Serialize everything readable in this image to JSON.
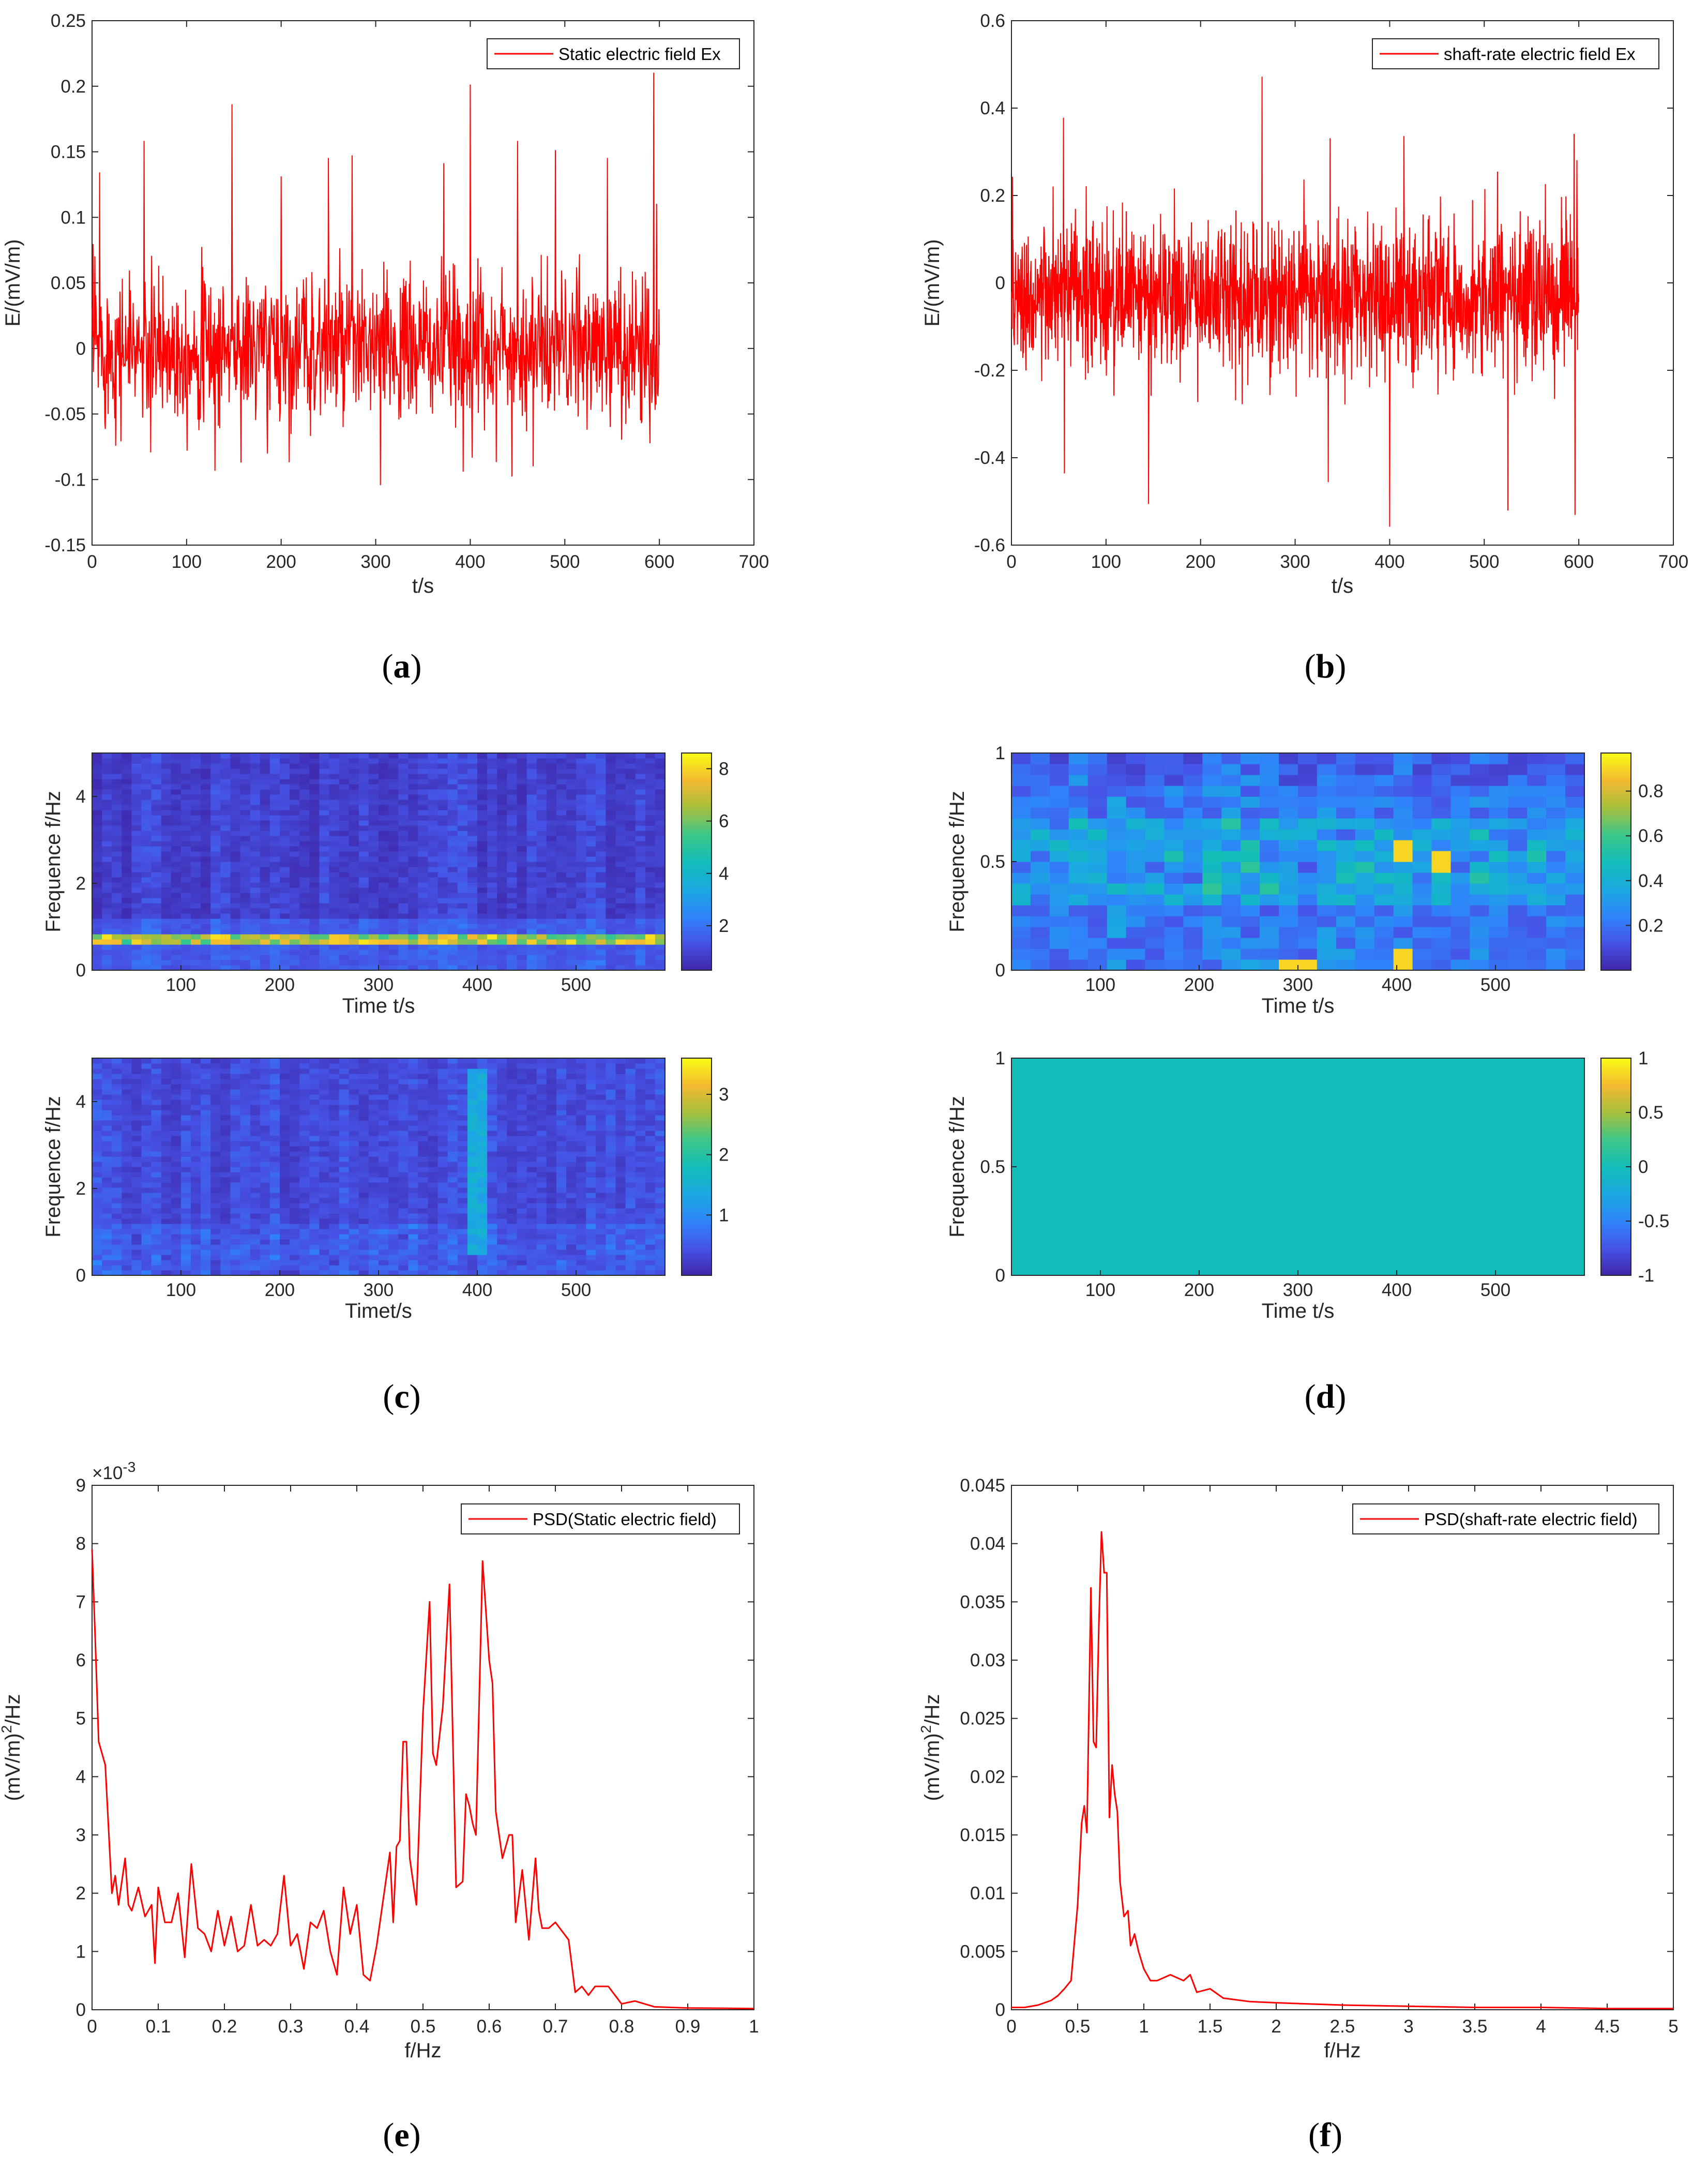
{
  "colors": {
    "line": "#ff0000",
    "axis": "#262626",
    "uniform_map": "#12bdb9",
    "parula": [
      "#3e26a8",
      "#4653e6",
      "#2f84fa",
      "#1aa9e0",
      "#12bdb9",
      "#3dc788",
      "#a7bf3c",
      "#f3ba30",
      "#f9fb15"
    ]
  },
  "chart_data": [
    {
      "id": "a",
      "type": "line",
      "label": "a",
      "xlabel": "t/s",
      "ylabel": "E/(mV/m)",
      "xlim": [
        0,
        700
      ],
      "ylim": [
        -0.15,
        0.25
      ],
      "xticks": [
        "0",
        "100",
        "200",
        "300",
        "400",
        "500",
        "600",
        "700"
      ],
      "yticks": [
        "-0.15",
        "-0.1",
        "-0.05",
        "0",
        "0.05",
        "0.1",
        "0.15",
        "0.2",
        "0.25"
      ],
      "legend": "Static electric field Ex",
      "series": {
        "name": "Static electric field Ex",
        "t_end": 600,
        "baseline": 0.0,
        "noise_sd": 0.028,
        "samples": 1200,
        "peaks": [
          [
            3,
            0.07
          ],
          [
            8,
            0.134
          ],
          [
            55,
            0.158
          ],
          [
            62,
            -0.079
          ],
          [
            130,
            -0.093
          ],
          [
            148,
            0.186
          ],
          [
            200,
            0.131
          ],
          [
            250,
            0.145
          ],
          [
            275,
            0.147
          ],
          [
            305,
            -0.104
          ],
          [
            372,
            0.141
          ],
          [
            400,
            0.201
          ],
          [
            402,
            -0.083
          ],
          [
            450,
            0.158
          ],
          [
            490,
            0.151
          ],
          [
            545,
            0.145
          ],
          [
            590,
            -0.072
          ],
          [
            594,
            0.21
          ],
          [
            597,
            0.11
          ]
        ]
      }
    },
    {
      "id": "b",
      "type": "line",
      "label": "b",
      "xlabel": "t/s",
      "ylabel": "E/(mV/m)",
      "xlim": [
        0,
        700
      ],
      "ylim": [
        -0.6,
        0.6
      ],
      "xticks": [
        "0",
        "100",
        "200",
        "300",
        "400",
        "500",
        "600",
        "700"
      ],
      "yticks": [
        "-0.6",
        "-0.4",
        "-0.2",
        "0",
        "0.2",
        "0.4",
        "0.6"
      ],
      "legend": "shaft-rate electric field Ex",
      "series": {
        "name": "shaft-rate electric field Ex",
        "t_end": 600,
        "baseline": -0.03,
        "noise_sd": 0.085,
        "samples": 1800,
        "peaks": [
          [
            55,
            0.377
          ],
          [
            56,
            -0.435
          ],
          [
            145,
            -0.505
          ],
          [
            265,
            0.471
          ],
          [
            335,
            -0.455
          ],
          [
            337,
            0.33
          ],
          [
            400,
            -0.557
          ],
          [
            415,
            0.335
          ],
          [
            525,
            -0.52
          ],
          [
            595,
            0.34
          ],
          [
            596,
            -0.53
          ],
          [
            598,
            0.28
          ]
        ]
      }
    },
    {
      "id": "c_top",
      "type": "heatmap",
      "label": "c",
      "xlabel": "Time t/s",
      "ylabel": "Frequence f/Hz",
      "xlim": [
        10,
        590
      ],
      "ylim": [
        0,
        5
      ],
      "xticks": [
        "100",
        "200",
        "300",
        "400",
        "500"
      ],
      "yticks": [
        "0",
        "2",
        "4"
      ],
      "clim": [
        0.3,
        8.6
      ],
      "cbar_ticks": [
        "2",
        "4",
        "6",
        "8"
      ],
      "pattern": "band",
      "band_freq": 0.7,
      "band_level": 5.5,
      "base_level": 1.0
    },
    {
      "id": "c_bottom",
      "type": "heatmap",
      "label": "c",
      "xlabel": "Timet/s",
      "ylabel": "Frequence f/Hz",
      "xlim": [
        10,
        590
      ],
      "ylim": [
        0,
        5
      ],
      "xticks": [
        "100",
        "200",
        "300",
        "400",
        "500"
      ],
      "yticks": [
        "0",
        "2",
        "4"
      ],
      "clim": [
        0,
        3.6
      ],
      "cbar_ticks": [
        "1",
        "2",
        "3"
      ],
      "pattern": "columns",
      "hot_column": 398,
      "base_level": 0.35
    },
    {
      "id": "d_top",
      "type": "heatmap",
      "label": "d",
      "xlabel": "Time t/s",
      "ylabel": "Frequence f/Hz",
      "xlim": [
        10,
        590
      ],
      "ylim": [
        0,
        1
      ],
      "xticks": [
        "100",
        "200",
        "300",
        "400",
        "500"
      ],
      "yticks": [
        "0",
        "0.5",
        "1"
      ],
      "clim": [
        0,
        0.97
      ],
      "cbar_ticks": [
        "0.2",
        "0.4",
        "0.6",
        "0.8"
      ],
      "pattern": "blocks",
      "band_freq": 0.5,
      "hotspots": [
        [
          400,
          0.55
        ],
        [
          450,
          0.5
        ],
        [
          300,
          0.02
        ],
        [
          400,
          0.05
        ]
      ]
    },
    {
      "id": "d_bottom",
      "type": "heatmap",
      "label": "d",
      "xlabel": "Time t/s",
      "ylabel": "Frequence f/Hz",
      "xlim": [
        10,
        590
      ],
      "ylim": [
        0,
        1
      ],
      "xticks": [
        "100",
        "200",
        "300",
        "400",
        "500"
      ],
      "yticks": [
        "0",
        "0.5",
        "1"
      ],
      "clim": [
        -1,
        1
      ],
      "cbar_ticks": [
        "-1",
        "-0.5",
        "0",
        "0.5",
        "1"
      ],
      "pattern": "uniform",
      "value": 0
    },
    {
      "id": "e",
      "type": "line",
      "label": "e",
      "xlabel": "f/Hz",
      "ylabel": "(mV/m)2/Hz",
      "xlim": [
        0,
        1
      ],
      "ylim": [
        0,
        9
      ],
      "xticks": [
        "0",
        "0.1",
        "0.2",
        "0.3",
        "0.4",
        "0.5",
        "0.6",
        "0.7",
        "0.8",
        "0.9",
        "1"
      ],
      "yticks": [
        "0",
        "1",
        "2",
        "3",
        "4",
        "5",
        "6",
        "7",
        "8",
        "9"
      ],
      "exponent": "×10-3",
      "legend": "PSD(Static electric field)",
      "series": {
        "name": "PSD(Static electric field)",
        "points": [
          [
            0,
            7.9
          ],
          [
            0.005,
            6.3
          ],
          [
            0.01,
            4.6
          ],
          [
            0.02,
            4.2
          ],
          [
            0.03,
            2.0
          ],
          [
            0.035,
            2.3
          ],
          [
            0.04,
            1.8
          ],
          [
            0.05,
            2.6
          ],
          [
            0.055,
            1.8
          ],
          [
            0.06,
            1.7
          ],
          [
            0.07,
            2.1
          ],
          [
            0.08,
            1.6
          ],
          [
            0.09,
            1.8
          ],
          [
            0.095,
            0.8
          ],
          [
            0.1,
            2.1
          ],
          [
            0.11,
            1.5
          ],
          [
            0.12,
            1.5
          ],
          [
            0.13,
            2.0
          ],
          [
            0.14,
            0.9
          ],
          [
            0.15,
            2.5
          ],
          [
            0.16,
            1.4
          ],
          [
            0.17,
            1.3
          ],
          [
            0.18,
            1.0
          ],
          [
            0.19,
            1.7
          ],
          [
            0.2,
            1.1
          ],
          [
            0.21,
            1.6
          ],
          [
            0.22,
            1.0
          ],
          [
            0.23,
            1.1
          ],
          [
            0.24,
            1.8
          ],
          [
            0.25,
            1.1
          ],
          [
            0.26,
            1.2
          ],
          [
            0.27,
            1.1
          ],
          [
            0.28,
            1.3
          ],
          [
            0.29,
            2.3
          ],
          [
            0.3,
            1.1
          ],
          [
            0.31,
            1.3
          ],
          [
            0.32,
            0.7
          ],
          [
            0.33,
            1.5
          ],
          [
            0.34,
            1.4
          ],
          [
            0.35,
            1.7
          ],
          [
            0.36,
            1.0
          ],
          [
            0.37,
            0.6
          ],
          [
            0.38,
            2.1
          ],
          [
            0.39,
            1.3
          ],
          [
            0.4,
            1.8
          ],
          [
            0.41,
            0.6
          ],
          [
            0.42,
            0.5
          ],
          [
            0.43,
            1.1
          ],
          [
            0.44,
            1.9
          ],
          [
            0.45,
            2.7
          ],
          [
            0.455,
            1.5
          ],
          [
            0.46,
            2.8
          ],
          [
            0.465,
            2.9
          ],
          [
            0.47,
            4.6
          ],
          [
            0.475,
            4.6
          ],
          [
            0.48,
            2.6
          ],
          [
            0.49,
            1.8
          ],
          [
            0.5,
            5.1
          ],
          [
            0.51,
            7.0
          ],
          [
            0.515,
            4.4
          ],
          [
            0.52,
            4.2
          ],
          [
            0.53,
            5.2
          ],
          [
            0.54,
            7.3
          ],
          [
            0.55,
            2.1
          ],
          [
            0.56,
            2.2
          ],
          [
            0.565,
            3.7
          ],
          [
            0.57,
            3.5
          ],
          [
            0.575,
            3.2
          ],
          [
            0.58,
            3.0
          ],
          [
            0.59,
            7.7
          ],
          [
            0.6,
            6.0
          ],
          [
            0.605,
            5.6
          ],
          [
            0.61,
            3.4
          ],
          [
            0.62,
            2.6
          ],
          [
            0.63,
            3.0
          ],
          [
            0.635,
            3.0
          ],
          [
            0.64,
            1.5
          ],
          [
            0.65,
            2.4
          ],
          [
            0.655,
            1.8
          ],
          [
            0.66,
            1.2
          ],
          [
            0.67,
            2.6
          ],
          [
            0.675,
            1.7
          ],
          [
            0.68,
            1.4
          ],
          [
            0.69,
            1.4
          ],
          [
            0.7,
            1.5
          ],
          [
            0.72,
            1.2
          ],
          [
            0.73,
            0.3
          ],
          [
            0.74,
            0.4
          ],
          [
            0.75,
            0.25
          ],
          [
            0.76,
            0.4
          ],
          [
            0.78,
            0.4
          ],
          [
            0.8,
            0.1
          ],
          [
            0.82,
            0.15
          ],
          [
            0.85,
            0.05
          ],
          [
            0.9,
            0.03
          ],
          [
            1.0,
            0.02
          ]
        ]
      }
    },
    {
      "id": "f",
      "type": "line",
      "label": "f",
      "xlabel": "f/Hz",
      "ylabel": "(mV/m)2/Hz",
      "xlim": [
        0,
        5
      ],
      "ylim": [
        0,
        0.045
      ],
      "xticks": [
        "0",
        "0.5",
        "1",
        "1.5",
        "2",
        "2.5",
        "3",
        "3.5",
        "4",
        "4.5",
        "5"
      ],
      "yticks": [
        "0",
        "0.005",
        "0.01",
        "0.015",
        "0.02",
        "0.025",
        "0.03",
        "0.035",
        "0.04",
        "0.045"
      ],
      "legend": "PSD(shaft-rate electric field)",
      "series": {
        "name": "PSD(shaft-rate electric field)",
        "points": [
          [
            0,
            0.0002
          ],
          [
            0.1,
            0.0002
          ],
          [
            0.2,
            0.0004
          ],
          [
            0.3,
            0.0008
          ],
          [
            0.35,
            0.0012
          ],
          [
            0.4,
            0.0018
          ],
          [
            0.45,
            0.0025
          ],
          [
            0.5,
            0.009
          ],
          [
            0.53,
            0.016
          ],
          [
            0.55,
            0.0175
          ],
          [
            0.57,
            0.0152
          ],
          [
            0.6,
            0.0362
          ],
          [
            0.62,
            0.023
          ],
          [
            0.64,
            0.0225
          ],
          [
            0.66,
            0.033
          ],
          [
            0.68,
            0.041
          ],
          [
            0.7,
            0.0375
          ],
          [
            0.72,
            0.0375
          ],
          [
            0.74,
            0.0165
          ],
          [
            0.76,
            0.021
          ],
          [
            0.78,
            0.0185
          ],
          [
            0.8,
            0.017
          ],
          [
            0.82,
            0.011
          ],
          [
            0.85,
            0.008
          ],
          [
            0.88,
            0.0085
          ],
          [
            0.9,
            0.0055
          ],
          [
            0.93,
            0.0065
          ],
          [
            0.96,
            0.005
          ],
          [
            1.0,
            0.0035
          ],
          [
            1.05,
            0.0025
          ],
          [
            1.1,
            0.0025
          ],
          [
            1.2,
            0.003
          ],
          [
            1.3,
            0.0025
          ],
          [
            1.35,
            0.003
          ],
          [
            1.4,
            0.0015
          ],
          [
            1.5,
            0.0018
          ],
          [
            1.6,
            0.001
          ],
          [
            1.8,
            0.0007
          ],
          [
            2.0,
            0.0006
          ],
          [
            2.5,
            0.0004
          ],
          [
            3.0,
            0.0003
          ],
          [
            3.5,
            0.0002
          ],
          [
            4.0,
            0.0002
          ],
          [
            4.5,
            0.0001
          ],
          [
            5.0,
            0.0001
          ]
        ]
      }
    }
  ]
}
